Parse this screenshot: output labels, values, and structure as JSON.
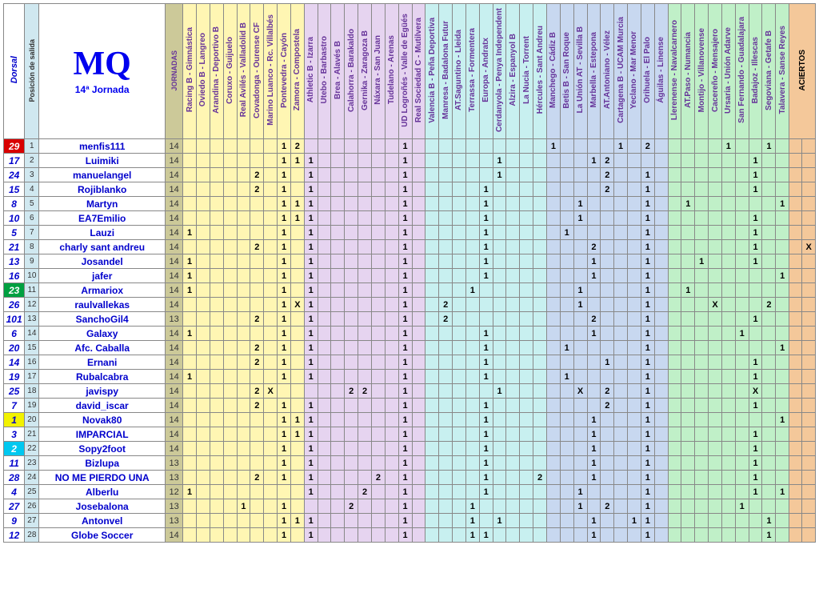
{
  "title": {
    "big": "MQ",
    "sub": "14ª Jornada"
  },
  "headers": {
    "dorsal": "Dorsal",
    "pos": "Posición de salida",
    "jornadas": "JORNADAS",
    "aciertos": "ACIERTOS"
  },
  "groups": [
    {
      "bg": "#fff6b3",
      "matches": [
        "Racing B - Gimnástica",
        "Oviedo B - Langreo",
        "Arandina - Deportivo B",
        "Coruxo - Guijuelo",
        "Real Avilés - Valladolid B",
        "Covadonga - Ourense CF",
        "Marino Luanco - Rc. Villalbés",
        "Pontevedra - Cayón",
        "Zamora - Compostela"
      ]
    },
    {
      "bg": "#e6d4f0",
      "matches": [
        "Athletic B - Izarra",
        "Utebo - Barbastro",
        "Brea - Alavés B",
        "Calahorra - Barakaldo",
        "Gernika - Zaragoza B",
        "Náxara - San Juan",
        "Tudelano - Arenas",
        "UD Logroñés - Valle de Egüés",
        "Real Sociedad C - Mutilvera"
      ]
    },
    {
      "bg": "#c8f0f0",
      "matches": [
        "Valencia B - Peña Deportiva",
        "Manresa - Badalona Futur",
        "AT.Saguntino - Lleida",
        "Terrassa - Formentera",
        "Europa - Andratx",
        "Cerdanyola - Penya Independent",
        "Alzira - Espanyol B",
        "La Nucia - Torrent",
        "Hércules - Sant Andreu"
      ]
    },
    {
      "bg": "#c8d8f0",
      "matches": [
        "Manchego - Cádiz B",
        "Betis B - San Roque",
        "La Unión AT - Sevilla B",
        "Marbella - Estepona",
        "AT.Antoniano - Vélez",
        "Cartagena B - UCAM Murcia",
        "Yeclano - Mar Menor",
        "Orihuela - El Palo",
        "Águilas - Linense"
      ]
    },
    {
      "bg": "#c0f0c8",
      "matches": [
        "Llerenense - Navalcarnero",
        "AT.Paso - Numancia",
        "Montijo - Villanovense",
        "Cacereño - Mensajero",
        "Ursaria - Unión Adarve",
        "San Fernando - Guadalajara",
        "Badajoz - Illescas",
        "Segoviana - Getafe B",
        "Talavera - Sanse Reyes"
      ]
    }
  ],
  "rows": [
    {
      "dorsal": "29",
      "dbg": "#d80000",
      "dfg": "#fff",
      "pos": "1",
      "name": "menfis111",
      "jor": "14",
      "p": {
        "7": "1",
        "8": "2",
        "16": "1",
        "27": "1",
        "32": "1",
        "34": "2",
        "40": "1",
        "43": "1"
      },
      "x": ""
    },
    {
      "dorsal": "17",
      "dbg": "#fff",
      "dfg": "#0000cc",
      "pos": "2",
      "name": "Luimiki",
      "jor": "14",
      "p": {
        "7": "1",
        "8": "1",
        "9": "1",
        "16": "1",
        "23": "1",
        "30": "1",
        "31": "2",
        "42": "1"
      },
      "x": ""
    },
    {
      "dorsal": "24",
      "dbg": "#fff",
      "dfg": "#0000cc",
      "pos": "3",
      "name": "manuelangel",
      "jor": "14",
      "p": {
        "5": "2",
        "7": "1",
        "9": "1",
        "16": "1",
        "23": "1",
        "31": "2",
        "34": "1",
        "42": "1"
      },
      "x": ""
    },
    {
      "dorsal": "15",
      "dbg": "#fff",
      "dfg": "#0000cc",
      "pos": "4",
      "name": "Rojiblanko",
      "jor": "14",
      "p": {
        "5": "2",
        "7": "1",
        "9": "1",
        "16": "1",
        "22": "1",
        "31": "2",
        "34": "1",
        "42": "1"
      },
      "x": ""
    },
    {
      "dorsal": "8",
      "dbg": "#fff",
      "dfg": "#0000cc",
      "pos": "5",
      "name": "Martyn",
      "jor": "14",
      "p": {
        "7": "1",
        "8": "1",
        "9": "1",
        "16": "1",
        "22": "1",
        "29": "1",
        "34": "1",
        "37": "1",
        "44": "1"
      },
      "x": ""
    },
    {
      "dorsal": "10",
      "dbg": "#fff",
      "dfg": "#0000cc",
      "pos": "6",
      "name": "EA7Emilio",
      "jor": "14",
      "p": {
        "7": "1",
        "8": "1",
        "9": "1",
        "16": "1",
        "22": "1",
        "29": "1",
        "34": "1",
        "42": "1"
      },
      "x": ""
    },
    {
      "dorsal": "5",
      "dbg": "#fff",
      "dfg": "#0000cc",
      "pos": "7",
      "name": "Lauzi",
      "jor": "14",
      "p": {
        "0": "1",
        "7": "1",
        "9": "1",
        "16": "1",
        "22": "1",
        "28": "1",
        "34": "1",
        "42": "1"
      },
      "x": ""
    },
    {
      "dorsal": "21",
      "dbg": "#fff",
      "dfg": "#0000cc",
      "pos": "8",
      "name": "charly sant andreu",
      "jor": "14",
      "p": {
        "5": "2",
        "7": "1",
        "9": "1",
        "16": "1",
        "22": "1",
        "30": "2",
        "34": "1",
        "42": "1"
      },
      "x": "X"
    },
    {
      "dorsal": "13",
      "dbg": "#fff",
      "dfg": "#0000cc",
      "pos": "9",
      "name": "Josandel",
      "jor": "14",
      "p": {
        "0": "1",
        "7": "1",
        "9": "1",
        "16": "1",
        "22": "1",
        "30": "1",
        "34": "1",
        "38": "1",
        "42": "1"
      },
      "x": ""
    },
    {
      "dorsal": "16",
      "dbg": "#fff",
      "dfg": "#0000cc",
      "pos": "10",
      "name": "jafer",
      "jor": "14",
      "p": {
        "0": "1",
        "7": "1",
        "9": "1",
        "16": "1",
        "22": "1",
        "30": "1",
        "34": "1",
        "44": "1"
      },
      "x": ""
    },
    {
      "dorsal": "23",
      "dbg": "#00a040",
      "dfg": "#fff",
      "pos": "11",
      "name": "Armariox",
      "jor": "14",
      "p": {
        "0": "1",
        "7": "1",
        "9": "1",
        "16": "1",
        "21": "1",
        "29": "1",
        "34": "1",
        "37": "1"
      },
      "x": ""
    },
    {
      "dorsal": "26",
      "dbg": "#fff",
      "dfg": "#0000cc",
      "pos": "12",
      "name": "raulvallekas",
      "jor": "14",
      "p": {
        "7": "1",
        "8": "X",
        "9": "1",
        "16": "1",
        "19": "2",
        "29": "1",
        "34": "1",
        "39": "X",
        "43": "2"
      },
      "x": ""
    },
    {
      "dorsal": "101",
      "dbg": "#fff",
      "dfg": "#0000cc",
      "pos": "13",
      "name": "SanchoGil4",
      "jor": "13",
      "p": {
        "5": "2",
        "7": "1",
        "9": "1",
        "16": "1",
        "19": "2",
        "30": "2",
        "34": "1",
        "42": "1"
      },
      "x": ""
    },
    {
      "dorsal": "6",
      "dbg": "#fff",
      "dfg": "#0000cc",
      "pos": "14",
      "name": "Galaxy",
      "jor": "14",
      "p": {
        "0": "1",
        "7": "1",
        "9": "1",
        "16": "1",
        "22": "1",
        "30": "1",
        "34": "1",
        "41": "1"
      },
      "x": ""
    },
    {
      "dorsal": "20",
      "dbg": "#fff",
      "dfg": "#0000cc",
      "pos": "15",
      "name": "Afc. Caballa",
      "jor": "14",
      "p": {
        "5": "2",
        "7": "1",
        "9": "1",
        "16": "1",
        "22": "1",
        "28": "1",
        "34": "1",
        "44": "1"
      },
      "x": ""
    },
    {
      "dorsal": "14",
      "dbg": "#fff",
      "dfg": "#0000cc",
      "pos": "16",
      "name": "Ernani",
      "jor": "14",
      "p": {
        "5": "2",
        "7": "1",
        "9": "1",
        "16": "1",
        "22": "1",
        "31": "1",
        "34": "1",
        "42": "1"
      },
      "x": ""
    },
    {
      "dorsal": "19",
      "dbg": "#fff",
      "dfg": "#0000cc",
      "pos": "17",
      "name": "Rubalcabra",
      "jor": "14",
      "p": {
        "0": "1",
        "7": "1",
        "9": "1",
        "16": "1",
        "22": "1",
        "28": "1",
        "34": "1",
        "42": "1"
      },
      "x": ""
    },
    {
      "dorsal": "25",
      "dbg": "#fff",
      "dfg": "#0000cc",
      "pos": "18",
      "name": "javispy",
      "jor": "14",
      "p": {
        "5": "2",
        "6": "X",
        "12": "2",
        "13": "2",
        "16": "1",
        "23": "1",
        "29": "X",
        "31": "2",
        "34": "1",
        "42": "X"
      },
      "x": ""
    },
    {
      "dorsal": "7",
      "dbg": "#fff",
      "dfg": "#0000cc",
      "pos": "19",
      "name": "david_iscar",
      "jor": "14",
      "p": {
        "5": "2",
        "7": "1",
        "9": "1",
        "16": "1",
        "22": "1",
        "31": "2",
        "34": "1",
        "42": "1"
      },
      "x": ""
    },
    {
      "dorsal": "1",
      "dbg": "#f2f200",
      "dfg": "#0000cc",
      "pos": "20",
      "name": "Novak80",
      "jor": "14",
      "p": {
        "7": "1",
        "8": "1",
        "9": "1",
        "16": "1",
        "22": "1",
        "30": "1",
        "34": "1",
        "44": "1"
      },
      "x": ""
    },
    {
      "dorsal": "3",
      "dbg": "#fff",
      "dfg": "#0000cc",
      "pos": "21",
      "name": "IMPARCIAL",
      "jor": "14",
      "p": {
        "7": "1",
        "8": "1",
        "9": "1",
        "16": "1",
        "22": "1",
        "30": "1",
        "34": "1",
        "42": "1"
      },
      "x": ""
    },
    {
      "dorsal": "2",
      "dbg": "#00c8f0",
      "dfg": "#fff",
      "pos": "22",
      "name": "Sopy2foot",
      "jor": "14",
      "p": {
        "7": "1",
        "9": "1",
        "16": "1",
        "22": "1",
        "30": "1",
        "34": "1",
        "42": "1"
      },
      "x": ""
    },
    {
      "dorsal": "11",
      "dbg": "#fff",
      "dfg": "#0000cc",
      "pos": "23",
      "name": "Bizlupa",
      "jor": "13",
      "p": {
        "7": "1",
        "9": "1",
        "16": "1",
        "22": "1",
        "30": "1",
        "34": "1",
        "42": "1"
      },
      "x": ""
    },
    {
      "dorsal": "28",
      "dbg": "#fff",
      "dfg": "#0000cc",
      "pos": "24",
      "name": "NO ME PIERDO UNA",
      "jor": "13",
      "p": {
        "5": "2",
        "7": "1",
        "9": "1",
        "14": "2",
        "16": "1",
        "22": "1",
        "26": "2",
        "30": "1",
        "34": "1",
        "42": "1"
      },
      "x": ""
    },
    {
      "dorsal": "4",
      "dbg": "#fff",
      "dfg": "#0000cc",
      "pos": "25",
      "name": "Alberlu",
      "jor": "12",
      "p": {
        "0": "1",
        "9": "1",
        "13": "2",
        "16": "1",
        "22": "1",
        "29": "1",
        "34": "1",
        "42": "1",
        "44": "1"
      },
      "x": ""
    },
    {
      "dorsal": "27",
      "dbg": "#fff",
      "dfg": "#0000cc",
      "pos": "26",
      "name": "Josebalona",
      "jor": "13",
      "p": {
        "4": "1",
        "7": "1",
        "12": "2",
        "16": "1",
        "21": "1",
        "29": "1",
        "31": "2",
        "34": "1",
        "41": "1"
      },
      "x": ""
    },
    {
      "dorsal": "9",
      "dbg": "#fff",
      "dfg": "#0000cc",
      "pos": "27",
      "name": "Antonvel",
      "jor": "13",
      "p": {
        "7": "1",
        "8": "1",
        "9": "1",
        "16": "1",
        "21": "1",
        "23": "1",
        "30": "1",
        "33": "1",
        "34": "1",
        "43": "1"
      },
      "x": ""
    },
    {
      "dorsal": "12",
      "dbg": "#fff",
      "dfg": "#0000cc",
      "pos": "28",
      "name": "Globe Soccer",
      "jor": "14",
      "p": {
        "7": "1",
        "9": "1",
        "16": "1",
        "21": "1",
        "22": "1",
        "30": "1",
        "34": "1",
        "43": "1"
      },
      "x": ""
    }
  ]
}
